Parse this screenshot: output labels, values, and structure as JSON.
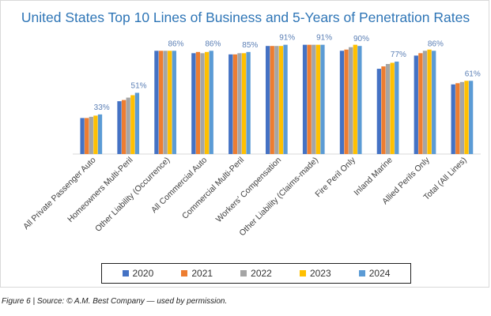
{
  "chart_data": {
    "type": "bar",
    "title": "United States Top 10 Lines of Business and 5-Years of Penetration Rates",
    "categories": [
      "All Private Passenger Auto",
      "Homeowners Multi-Peril",
      "Other Liability (Occurrence)",
      "All Commercial Auto",
      "Commercial Multi-Peril",
      "Workers' Compensation",
      "Other Liability (Claims-made)",
      "Fire Peril Only",
      "Inland Marine",
      "Allied Perils Only",
      "Total (All Lines)"
    ],
    "series": [
      {
        "name": "2020",
        "color": "#4472c4",
        "values": [
          30,
          44,
          86,
          84,
          83,
          90,
          91,
          86,
          71,
          82,
          58
        ]
      },
      {
        "name": "2021",
        "color": "#ed7d31",
        "values": [
          30,
          45,
          86,
          85,
          83,
          90,
          91,
          87,
          73,
          84,
          59
        ]
      },
      {
        "name": "2022",
        "color": "#a5a5a5",
        "values": [
          31,
          47,
          86,
          84,
          84,
          90,
          91,
          89,
          75,
          86,
          60
        ]
      },
      {
        "name": "2023",
        "color": "#ffc000",
        "values": [
          32,
          49,
          86,
          85,
          84,
          90,
          91,
          91,
          76,
          87,
          61
        ]
      },
      {
        "name": "2024",
        "color": "#5b9bd5",
        "values": [
          33,
          51,
          86,
          86,
          85,
          91,
          91,
          90,
          77,
          86,
          61
        ]
      }
    ],
    "data_labels": [
      "33%",
      "51%",
      "86%",
      "86%",
      "85%",
      "91%",
      "91%",
      "90%",
      "77%",
      "86%",
      "61%"
    ],
    "ylim": [
      0,
      100
    ],
    "xlabel": "",
    "ylabel": "",
    "grid": false,
    "legend_position": "bottom"
  },
  "caption": "Figure 6 | Source: © A.M. Best Company — used by permission."
}
